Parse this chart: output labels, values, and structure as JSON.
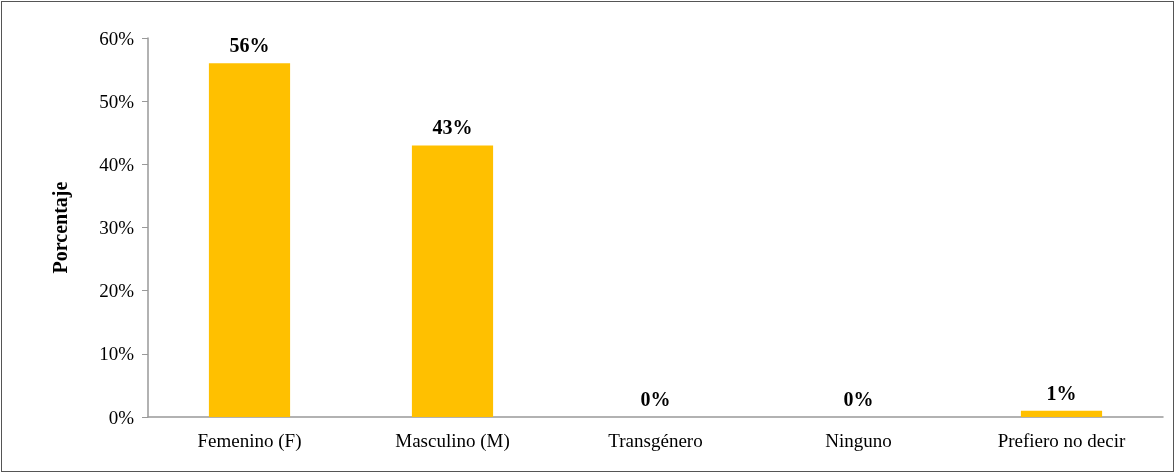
{
  "chart_data": {
    "type": "bar",
    "ylabel": "Porcentaje",
    "categories": [
      "Femenino (F)",
      "Masculino (M)",
      "Transgénero",
      "Ninguno",
      "Prefiero no decir"
    ],
    "values": [
      56,
      43,
      0,
      0,
      1
    ],
    "value_labels": [
      "56%",
      "43%",
      "0%",
      "0%",
      "1%"
    ],
    "color": "#ffc000",
    "ylim": [
      0,
      60
    ],
    "yticks": [
      {
        "value": 0,
        "label": "0%"
      },
      {
        "value": 10,
        "label": "10%"
      },
      {
        "value": 20,
        "label": "20%"
      },
      {
        "value": 30,
        "label": "30%"
      },
      {
        "value": 40,
        "label": "40%"
      },
      {
        "value": 50,
        "label": "50%"
      },
      {
        "value": 60,
        "label": "60%"
      }
    ],
    "grid": false
  }
}
